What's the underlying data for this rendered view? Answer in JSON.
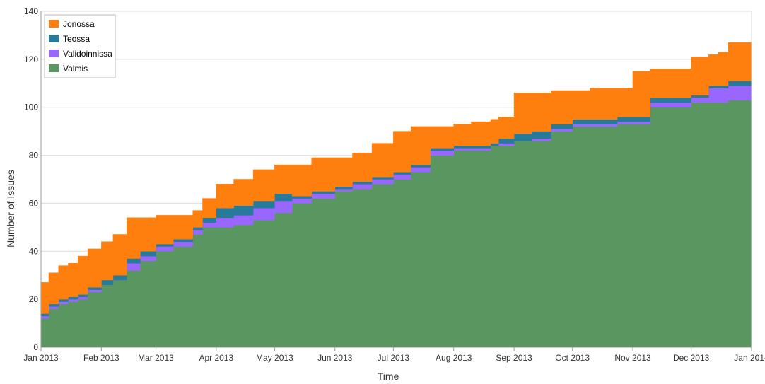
{
  "chart_data": {
    "type": "area",
    "stacked": true,
    "xlabel": "Time",
    "ylabel": "Number of Issues",
    "xlim": [
      "2013-01-01",
      "2014-01-01"
    ],
    "ylim": [
      0,
      140
    ],
    "yticks": [
      0,
      20,
      40,
      60,
      80,
      100,
      120,
      140
    ],
    "xticks": [
      {
        "date": "2013-01-01",
        "label": "Jan 2013"
      },
      {
        "date": "2013-02-01",
        "label": "Feb 2013"
      },
      {
        "date": "2013-03-01",
        "label": "Mar 2013"
      },
      {
        "date": "2013-04-01",
        "label": "Apr 2013"
      },
      {
        "date": "2013-05-01",
        "label": "May 2013"
      },
      {
        "date": "2013-06-01",
        "label": "Jun 2013"
      },
      {
        "date": "2013-07-01",
        "label": "Jul 2013"
      },
      {
        "date": "2013-08-01",
        "label": "Aug 2013"
      },
      {
        "date": "2013-09-01",
        "label": "Sep 2013"
      },
      {
        "date": "2013-10-01",
        "label": "Oct 2013"
      },
      {
        "date": "2013-11-01",
        "label": "Nov 2013"
      },
      {
        "date": "2013-12-01",
        "label": "Dec 2013"
      },
      {
        "date": "2014-01-01",
        "label": "Jan 2014"
      }
    ],
    "grid": "horizontal",
    "legend_position": "top-left",
    "x": [
      "2013-01-01",
      "2013-01-05",
      "2013-01-10",
      "2013-01-15",
      "2013-01-20",
      "2013-01-25",
      "2013-02-01",
      "2013-02-07",
      "2013-02-14",
      "2013-02-21",
      "2013-03-01",
      "2013-03-10",
      "2013-03-20",
      "2013-03-25",
      "2013-04-01",
      "2013-04-10",
      "2013-04-20",
      "2013-05-01",
      "2013-05-10",
      "2013-05-20",
      "2013-06-01",
      "2013-06-10",
      "2013-06-20",
      "2013-07-01",
      "2013-07-10",
      "2013-07-20",
      "2013-08-01",
      "2013-08-10",
      "2013-08-20",
      "2013-08-24",
      "2013-09-01",
      "2013-09-10",
      "2013-09-20",
      "2013-10-01",
      "2013-10-10",
      "2013-10-20",
      "2013-10-24",
      "2013-11-01",
      "2013-11-10",
      "2013-11-20",
      "2013-12-01",
      "2013-12-10",
      "2013-12-15",
      "2013-12-20",
      "2014-01-01"
    ],
    "series": [
      {
        "name": "Valmis",
        "color": "#5a9660",
        "values": [
          12,
          16,
          18,
          19,
          20,
          23,
          26,
          28,
          32,
          36,
          40,
          42,
          47,
          50,
          50,
          51,
          53,
          56,
          60,
          62,
          65,
          66,
          68,
          70,
          73,
          80,
          82,
          82,
          84,
          84,
          86,
          86,
          90,
          92,
          92,
          92,
          93,
          93,
          100,
          100,
          102,
          102,
          102,
          103,
          105
        ]
      },
      {
        "name": "Validoinnissa",
        "color": "#9966ff",
        "values": [
          1,
          1,
          1,
          1,
          1,
          1,
          0,
          0,
          3,
          2,
          2,
          2,
          2,
          2,
          4,
          4,
          5,
          5,
          2,
          2,
          1,
          2,
          2,
          2,
          2,
          2,
          1,
          1,
          0,
          1,
          0,
          1,
          1,
          1,
          1,
          1,
          1,
          1,
          2,
          2,
          2,
          6,
          6,
          6,
          4
        ]
      },
      {
        "name": "Teossa",
        "color": "#267a9a",
        "values": [
          1,
          1,
          1,
          1,
          1,
          1,
          2,
          2,
          2,
          2,
          1,
          1,
          1,
          2,
          4,
          4,
          3,
          3,
          1,
          1,
          1,
          1,
          1,
          1,
          1,
          1,
          1,
          1,
          1,
          2,
          3,
          3,
          2,
          2,
          2,
          2,
          2,
          2,
          2,
          2,
          1,
          1,
          1,
          2,
          4
        ]
      },
      {
        "name": "Jonossa",
        "color": "#ff7f0e",
        "values": [
          13,
          13,
          14,
          14,
          16,
          16,
          16,
          17,
          17,
          14,
          12,
          10,
          7,
          8,
          10,
          11,
          13,
          12,
          13,
          14,
          12,
          12,
          14,
          17,
          16,
          9,
          9,
          10,
          10,
          9,
          17,
          16,
          14,
          12,
          13,
          13,
          12,
          19,
          12,
          12,
          16,
          13,
          14,
          16,
          22
        ]
      }
    ]
  }
}
